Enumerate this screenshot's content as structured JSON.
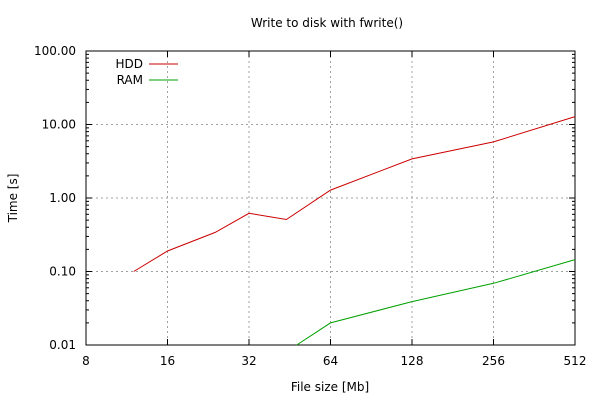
{
  "chart_data": {
    "type": "line",
    "title": "Write to disk with fwrite()",
    "xlabel": "File size [Mb]",
    "ylabel": "Time [s]",
    "x_scale": "log2",
    "y_scale": "log10",
    "xlim": [
      8,
      512
    ],
    "ylim": [
      0.01,
      100
    ],
    "x_ticks": [
      8,
      16,
      32,
      64,
      128,
      256,
      512
    ],
    "x_tick_labels": [
      "8",
      "16",
      "32",
      "64",
      "128",
      "256",
      "512"
    ],
    "y_ticks": [
      0.01,
      0.1,
      1,
      10,
      100
    ],
    "y_tick_labels": [
      "0.01",
      "0.10",
      "1.00",
      "10.00",
      "100.00"
    ],
    "grid": true,
    "legend_position": "top-left",
    "series": [
      {
        "name": "HDD",
        "color": "#cc0000",
        "x": [
          12,
          16,
          24,
          32,
          44,
          64,
          128,
          256,
          512
        ],
        "y": [
          0.1,
          0.19,
          0.34,
          0.62,
          0.51,
          1.28,
          3.4,
          5.8,
          12.8
        ]
      },
      {
        "name": "RAM",
        "color": "#00a000",
        "x": [
          48,
          64,
          128,
          256,
          512
        ],
        "y": [
          0.01,
          0.02,
          0.039,
          0.069,
          0.145
        ]
      }
    ]
  }
}
